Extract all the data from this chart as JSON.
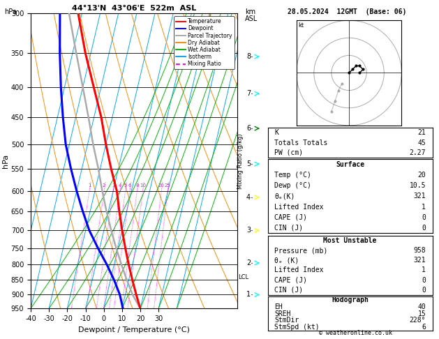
{
  "title_left": "44°13'N  43°06'E  522m  ASL",
  "title_right": "28.05.2024  12GMT  (Base: 06)",
  "xlabel": "Dewpoint / Temperature (°C)",
  "ylabel_left": "hPa",
  "pressure_levels": [
    300,
    350,
    400,
    450,
    500,
    550,
    600,
    650,
    700,
    750,
    800,
    850,
    900,
    950
  ],
  "temp_range": [
    -40,
    35
  ],
  "p_min": 300,
  "p_max": 950,
  "background": "#ffffff",
  "legend_entries": [
    "Temperature",
    "Dewpoint",
    "Parcel Trajectory",
    "Dry Adiabat",
    "Wet Adiabat",
    "Isotherm",
    "Mixing Ratio"
  ],
  "legend_colors": [
    "#ff0000",
    "#0000ff",
    "#aaaaaa",
    "#ff8c00",
    "#00bb00",
    "#00aaff",
    "#ff00ff"
  ],
  "temp_profile_p": [
    950,
    900,
    850,
    800,
    750,
    700,
    650,
    600,
    550,
    500,
    450,
    400,
    350,
    300
  ],
  "temp_profile_t": [
    20,
    16,
    12,
    8,
    4,
    0,
    -4,
    -8,
    -14,
    -20,
    -26,
    -34,
    -43,
    -52
  ],
  "dewp_profile_p": [
    950,
    900,
    850,
    800,
    750,
    700,
    650,
    600,
    550,
    500,
    450,
    400,
    350,
    300
  ],
  "dewp_profile_t": [
    10.5,
    7,
    2,
    -4,
    -11,
    -18,
    -24,
    -30,
    -36,
    -42,
    -47,
    -52,
    -57,
    -62
  ],
  "parcel_profile_p": [
    950,
    900,
    850,
    800,
    750,
    700,
    650,
    600,
    550,
    500,
    450,
    400,
    350,
    300
  ],
  "parcel_profile_t": [
    20,
    14,
    9,
    4,
    -1,
    -6,
    -11,
    -16,
    -21,
    -27,
    -33,
    -40,
    -48,
    -57
  ],
  "km_ticks": [
    1,
    2,
    3,
    4,
    5,
    6,
    7,
    8
  ],
  "km_pressures": [
    900,
    795,
    700,
    615,
    540,
    470,
    410,
    355
  ],
  "lcl_pressure": 840,
  "stats_K": 21,
  "stats_TT": 45,
  "stats_PW": 2.27,
  "surf_temp": 20,
  "surf_dewp": 10.5,
  "surf_theta_e": 321,
  "surf_li": 1,
  "surf_cape": 0,
  "surf_cin": 0,
  "mu_pressure": 958,
  "mu_theta_e": 321,
  "mu_li": 1,
  "mu_cape": 0,
  "mu_cin": 0,
  "hodo_EH": 40,
  "hodo_SREH": 15,
  "hodo_StmDir": "228°",
  "hodo_StmSpd": 6,
  "copyright": "© weatheronline.co.uk",
  "skew": 38.0
}
